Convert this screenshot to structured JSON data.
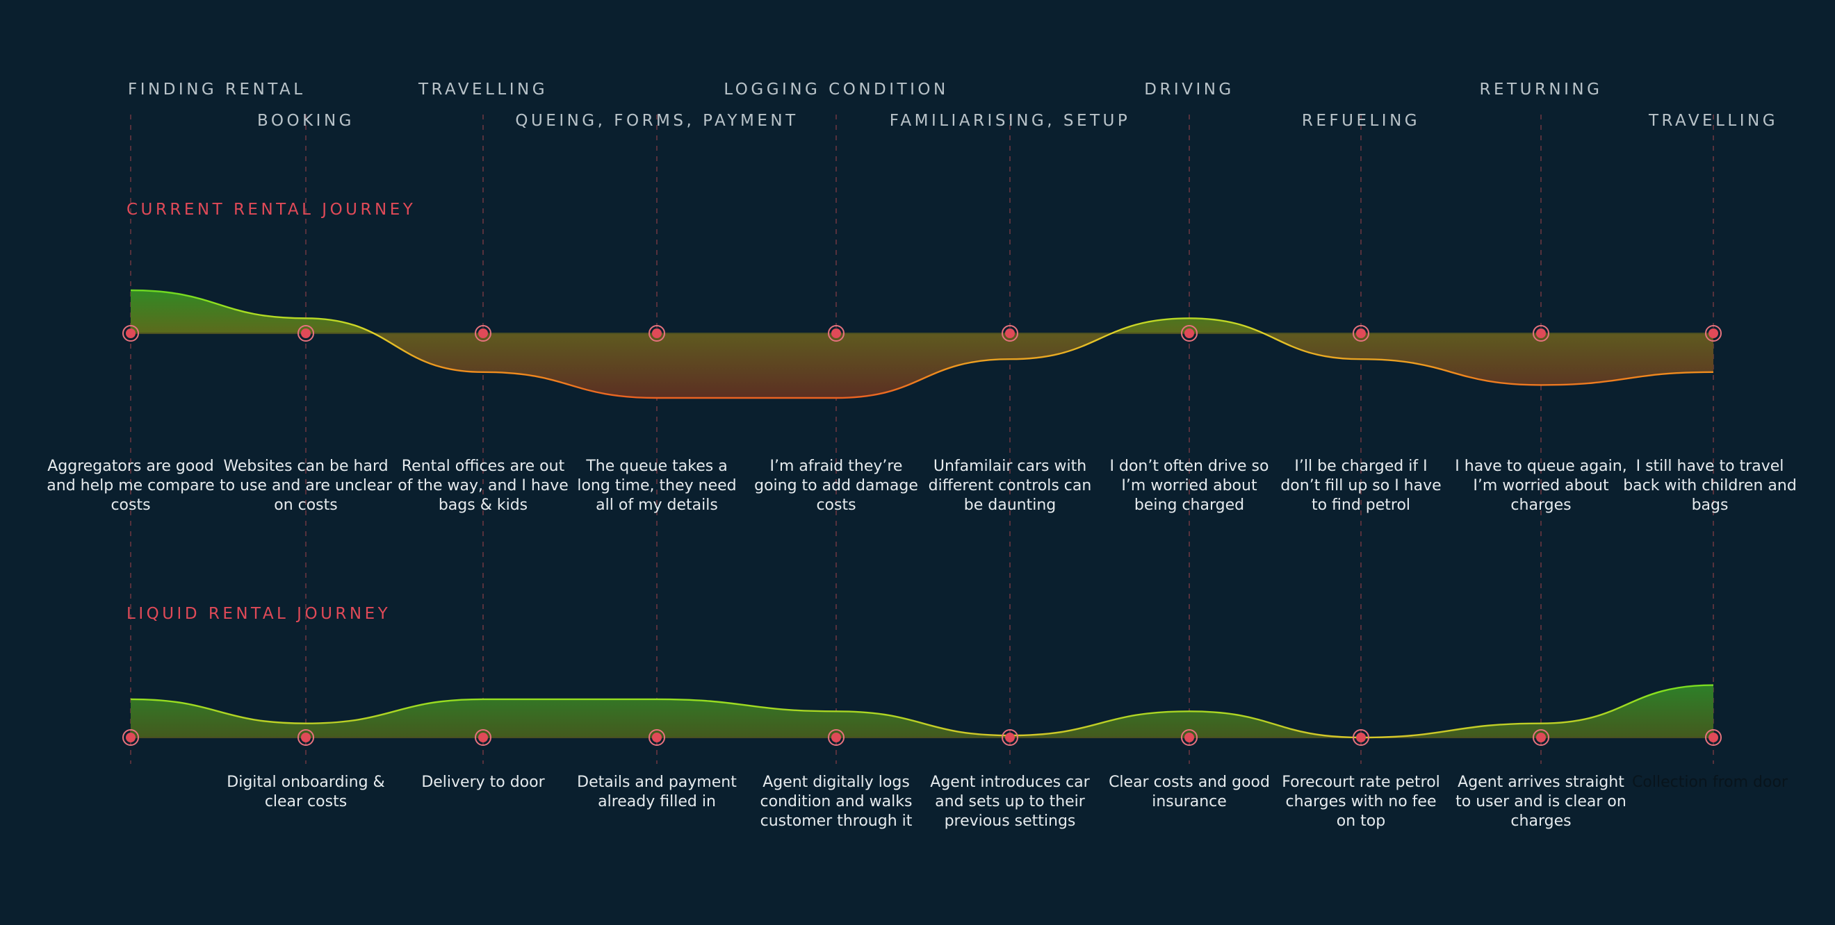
{
  "stages": [
    {
      "label": "FINDING RENTAL",
      "row": 1
    },
    {
      "label": "BOOKING",
      "row": 2
    },
    {
      "label": "TRAVELLING",
      "row": 1
    },
    {
      "label": "QUEING, FORMS, PAYMENT",
      "row": 2
    },
    {
      "label": "LOGGING CONDITION",
      "row": 1
    },
    {
      "label": "FAMILIARISING, SETUP",
      "row": 2
    },
    {
      "label": "DRIVING",
      "row": 1
    },
    {
      "label": "REFUELING",
      "row": 2
    },
    {
      "label": "RETURNING",
      "row": 1
    },
    {
      "label": "TRAVELLING",
      "row": 2
    }
  ],
  "current_journey": {
    "title": "CURRENT RENTAL JOURNEY",
    "sentiment": [
      1.0,
      0.35,
      -0.9,
      -1.5,
      -1.5,
      -0.6,
      0.35,
      -0.6,
      -1.2,
      -0.9
    ],
    "captions": [
      "Aggregators are good and help me compare costs",
      "Websites can be hard to use and are unclear on costs",
      "Rental offices are out of the way, and I have bags & kids",
      "The queue takes a long time, they need all of my details",
      "I’m afraid they’re going to add damage costs",
      "Unfamilair cars with different controls can be daunting",
      "I don’t often drive so I’m worried about being charged",
      "I’ll be charged if I don’t fill up so I have to find petrol",
      "I have to queue again, I’m worried about charges",
      "I still have to travel back with children and bags"
    ]
  },
  "liquid_journey": {
    "title": "LIQUID RENTAL JOURNEY",
    "sentiment": [
      0.95,
      0.35,
      0.95,
      0.95,
      0.65,
      0.05,
      0.65,
      0.0,
      0.35,
      1.3
    ],
    "captions": [
      "",
      "Digital onboarding & clear costs",
      "Delivery to door",
      "Details and payment already filled in",
      "Agent digitally logs condition and walks customer through it",
      "Agent introduces car and sets up to their previous settings",
      "Clear costs and good insurance",
      "Forecourt rate petrol charges with no fee on top",
      "Agent arrives straight to user and is clear on charges",
      "Collection from door"
    ]
  },
  "colors": {
    "background": "#0a1f2e",
    "accent": "#e04a58",
    "positive": "#7ddc1f",
    "neutral": "#d6c62a",
    "negative": "#e0202a",
    "stage_text": "#b9c3c9"
  }
}
